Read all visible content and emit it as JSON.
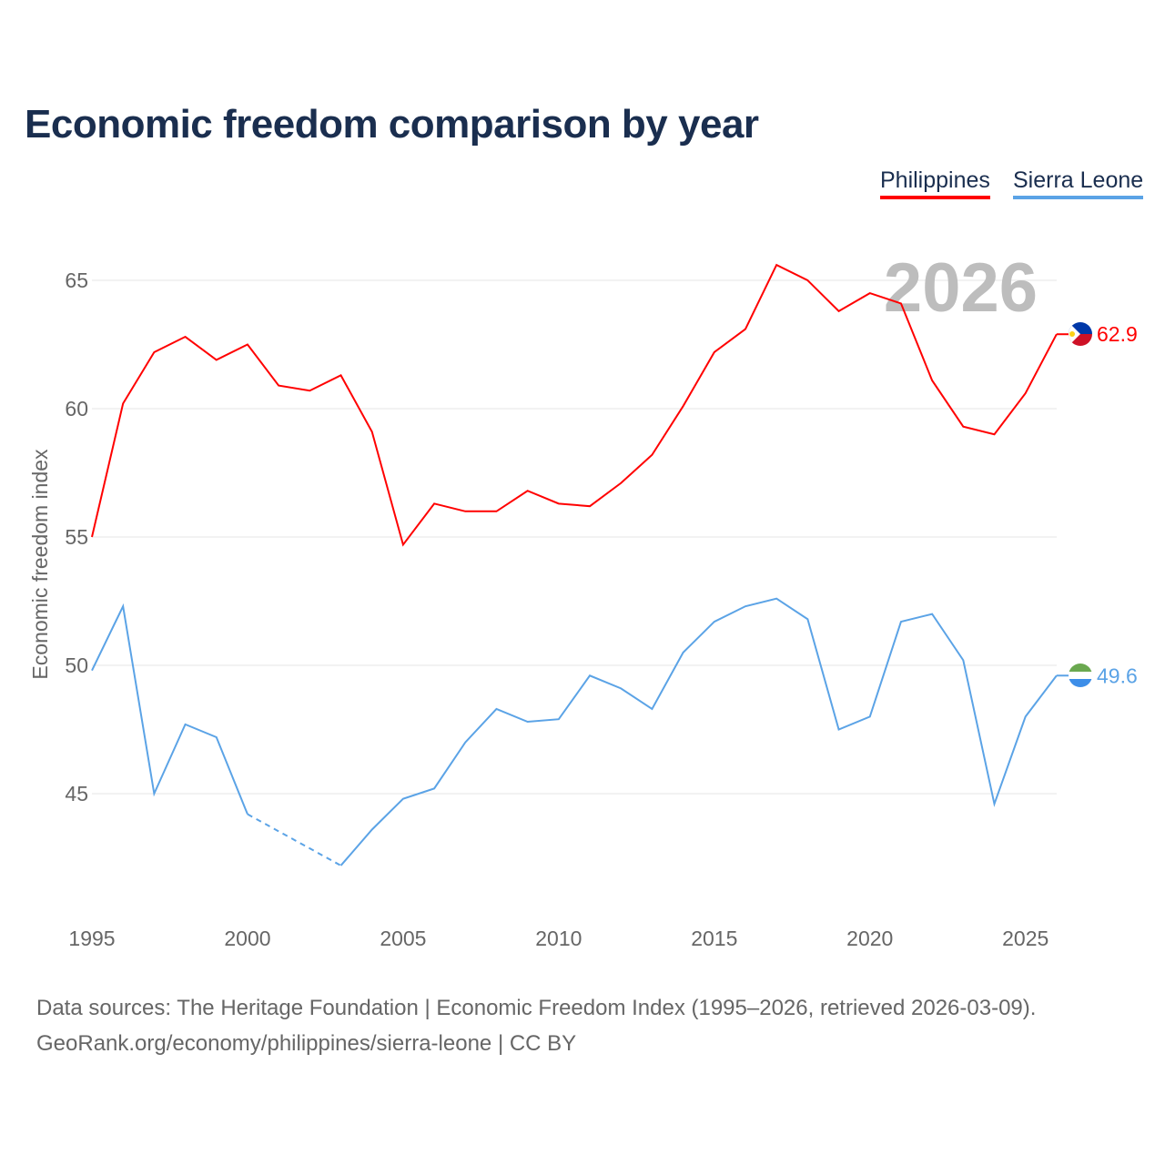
{
  "title": "Economic freedom comparison by year",
  "legend": [
    "Philippines",
    "Sierra Leone"
  ],
  "source": {
    "line1": "Data sources: The Heritage Foundation | Economic Freedom Index (1995–2026, retrieved 2026-03-09).",
    "line2": "GeoRank.org/economy/philippines/sierra-leone | CC BY"
  },
  "chart_data": {
    "type": "line",
    "title": "Economic freedom comparison by year",
    "xlabel": "",
    "ylabel": "Economic freedom index",
    "year_label": "2026",
    "x": [
      1995,
      1996,
      1997,
      1998,
      1999,
      2000,
      2001,
      2002,
      2003,
      2004,
      2005,
      2006,
      2007,
      2008,
      2009,
      2010,
      2011,
      2012,
      2013,
      2014,
      2015,
      2016,
      2017,
      2018,
      2019,
      2020,
      2021,
      2022,
      2023,
      2024,
      2025,
      2026
    ],
    "xticks": [
      1995,
      2000,
      2005,
      2010,
      2015,
      2020,
      2025
    ],
    "yticks": [
      45,
      50,
      55,
      60,
      65
    ],
    "ylim": [
      40.5,
      66.5
    ],
    "xlim": [
      1995,
      2026
    ],
    "grid": true,
    "legend_position": "top-right",
    "series": [
      {
        "name": "Philippines",
        "color": "#ff0000",
        "end_label": "62.9",
        "values": [
          55.0,
          60.2,
          62.2,
          62.8,
          61.9,
          62.5,
          60.9,
          60.7,
          61.3,
          59.1,
          54.7,
          56.3,
          56.0,
          56.0,
          56.8,
          56.3,
          56.2,
          57.1,
          58.2,
          60.1,
          62.2,
          63.1,
          65.6,
          65.0,
          63.8,
          64.5,
          64.1,
          61.1,
          59.3,
          59.0,
          60.6,
          62.9
        ]
      },
      {
        "name": "Sierra Leone",
        "color": "#5ba3e6",
        "end_label": "49.6",
        "values": [
          49.8,
          52.3,
          45.0,
          47.7,
          47.2,
          44.2,
          null,
          null,
          42.2,
          43.6,
          44.8,
          45.2,
          47.0,
          48.3,
          47.8,
          47.9,
          49.6,
          49.1,
          48.3,
          50.5,
          51.7,
          52.3,
          52.6,
          51.8,
          47.5,
          48.0,
          51.7,
          52.0,
          50.2,
          44.6,
          48.0,
          49.6
        ]
      }
    ]
  }
}
